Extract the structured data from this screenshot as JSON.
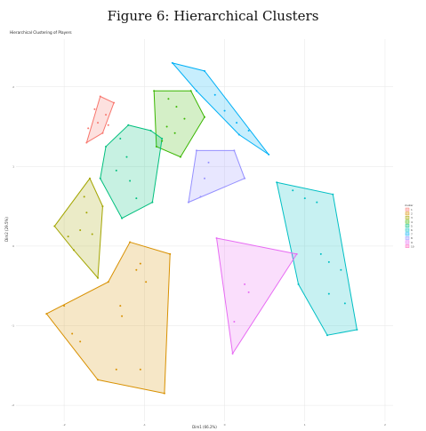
{
  "figure_title": "Figure 6: Hierarchical Clusters",
  "colors": {
    "1": "#F8766D",
    "2": "#D89000",
    "3": "#A3A500",
    "4": "#39B600",
    "5": "#00BF7D",
    "6": "#00BFC4",
    "7": "#00B0F6",
    "8": "#9590FF",
    "9": "#E76BF3",
    "10": "#FF62BC"
  },
  "chart_data": {
    "type": "scatter",
    "title": "Hierarchical Clustering of Players",
    "xlabel": "Dim1 (66.2%)",
    "ylabel": "Dim2 (29.5%)",
    "xlim": [
      -2.6,
      2.1
    ],
    "ylim": [
      -2.2,
      2.6
    ],
    "grid": true,
    "legend_title": "cluster",
    "legend_position": "right",
    "clusters": [
      {
        "name": "1",
        "hull": [
          [
            -1.55,
            1.88
          ],
          [
            -1.38,
            1.8
          ],
          [
            -1.52,
            1.42
          ],
          [
            -1.72,
            1.3
          ]
        ],
        "points": [
          [
            -1.55,
            1.88
          ],
          [
            -1.62,
            1.72
          ],
          [
            -1.48,
            1.65
          ],
          [
            -1.58,
            1.55
          ],
          [
            -1.7,
            1.48
          ],
          [
            -1.45,
            1.52
          ],
          [
            -1.52,
            1.42
          ],
          [
            -1.72,
            1.3
          ],
          [
            -1.38,
            1.8
          ]
        ]
      },
      {
        "name": "2",
        "hull": [
          [
            -1.18,
            0.05
          ],
          [
            -0.68,
            -0.1
          ],
          [
            -0.75,
            -1.85
          ],
          [
            -1.58,
            -1.68
          ],
          [
            -2.22,
            -0.85
          ],
          [
            -1.45,
            -0.45
          ]
        ],
        "points": [
          [
            -1.18,
            0.05
          ],
          [
            -0.68,
            -0.1
          ],
          [
            -0.75,
            -1.85
          ],
          [
            -1.58,
            -1.68
          ],
          [
            -2.22,
            -0.85
          ],
          [
            -1.45,
            -0.45
          ],
          [
            -1.05,
            -0.22
          ],
          [
            -1.1,
            -0.3
          ],
          [
            -0.98,
            -0.45
          ],
          [
            -1.3,
            -0.75
          ],
          [
            -2.0,
            -0.75
          ],
          [
            -1.9,
            -1.1
          ],
          [
            -1.8,
            -1.2
          ],
          [
            -1.35,
            -1.55
          ],
          [
            -1.05,
            -1.55
          ],
          [
            -1.28,
            -0.88
          ]
        ]
      },
      {
        "name": "3",
        "hull": [
          [
            -1.68,
            0.85
          ],
          [
            -1.52,
            0.5
          ],
          [
            -1.58,
            -0.4
          ],
          [
            -1.88,
            -0.05
          ],
          [
            -2.12,
            0.25
          ]
        ],
        "points": [
          [
            -1.68,
            0.85
          ],
          [
            -1.52,
            0.5
          ],
          [
            -1.58,
            -0.4
          ],
          [
            -1.88,
            -0.05
          ],
          [
            -2.12,
            0.25
          ],
          [
            -1.75,
            0.62
          ],
          [
            -1.72,
            0.42
          ],
          [
            -1.8,
            0.2
          ],
          [
            -1.95,
            0.12
          ],
          [
            -1.65,
            0.15
          ]
        ]
      },
      {
        "name": "4",
        "hull": [
          [
            -0.88,
            1.95
          ],
          [
            -0.42,
            1.95
          ],
          [
            -0.25,
            1.62
          ],
          [
            -0.55,
            1.12
          ],
          [
            -0.85,
            1.25
          ]
        ],
        "points": [
          [
            -0.88,
            1.95
          ],
          [
            -0.42,
            1.95
          ],
          [
            -0.25,
            1.62
          ],
          [
            -0.55,
            1.12
          ],
          [
            -0.85,
            1.25
          ],
          [
            -0.7,
            1.85
          ],
          [
            -0.6,
            1.75
          ],
          [
            -0.5,
            1.6
          ],
          [
            -0.72,
            1.5
          ],
          [
            -0.62,
            1.42
          ],
          [
            -0.78,
            1.32
          ]
        ]
      },
      {
        "name": "5",
        "hull": [
          [
            -1.2,
            1.52
          ],
          [
            -0.92,
            1.45
          ],
          [
            -0.78,
            1.35
          ],
          [
            -0.9,
            0.55
          ],
          [
            -1.28,
            0.35
          ],
          [
            -1.55,
            0.85
          ],
          [
            -1.48,
            1.25
          ]
        ],
        "points": [
          [
            -1.2,
            1.52
          ],
          [
            -0.92,
            1.45
          ],
          [
            -0.78,
            1.35
          ],
          [
            -0.9,
            0.55
          ],
          [
            -1.28,
            0.35
          ],
          [
            -1.55,
            0.85
          ],
          [
            -1.48,
            1.25
          ],
          [
            -1.3,
            1.35
          ],
          [
            -1.22,
            1.12
          ],
          [
            -1.35,
            0.95
          ],
          [
            -1.18,
            0.82
          ],
          [
            -1.1,
            0.6
          ]
        ]
      },
      {
        "name": "6",
        "hull": [
          [
            0.65,
            0.8
          ],
          [
            1.35,
            0.65
          ],
          [
            1.65,
            -1.05
          ],
          [
            1.28,
            -1.12
          ],
          [
            0.92,
            -0.48
          ]
        ],
        "points": [
          [
            0.65,
            0.8
          ],
          [
            1.35,
            0.65
          ],
          [
            1.65,
            -1.05
          ],
          [
            1.28,
            -1.12
          ],
          [
            0.92,
            -0.48
          ],
          [
            0.85,
            0.7
          ],
          [
            1.0,
            0.6
          ],
          [
            1.15,
            0.55
          ],
          [
            1.2,
            -0.1
          ],
          [
            1.3,
            -0.2
          ],
          [
            1.45,
            -0.3
          ],
          [
            1.5,
            -0.72
          ],
          [
            1.3,
            -0.6
          ]
        ]
      },
      {
        "name": "7",
        "hull": [
          [
            -0.65,
            2.3
          ],
          [
            -0.25,
            2.2
          ],
          [
            0.55,
            1.15
          ],
          [
            0.18,
            1.4
          ],
          [
            -0.35,
            1.95
          ]
        ],
        "points": [
          [
            -0.65,
            2.3
          ],
          [
            -0.25,
            2.2
          ],
          [
            0.55,
            1.15
          ],
          [
            0.18,
            1.4
          ],
          [
            -0.35,
            1.95
          ],
          [
            -0.12,
            1.9
          ],
          [
            0.0,
            1.7
          ],
          [
            0.15,
            1.55
          ],
          [
            0.3,
            1.45
          ]
        ]
      },
      {
        "name": "8",
        "hull": [
          [
            -0.35,
            1.2
          ],
          [
            0.12,
            1.2
          ],
          [
            0.25,
            0.85
          ],
          [
            -0.45,
            0.55
          ]
        ],
        "points": [
          [
            -0.35,
            1.2
          ],
          [
            0.12,
            1.2
          ],
          [
            0.25,
            0.85
          ],
          [
            -0.45,
            0.55
          ],
          [
            -0.2,
            1.05
          ],
          [
            -0.25,
            0.85
          ],
          [
            -0.3,
            0.62
          ]
        ]
      },
      {
        "name": "9",
        "hull": [
          [
            -0.1,
            0.1
          ],
          [
            0.9,
            -0.1
          ],
          [
            0.1,
            -1.35
          ]
        ],
        "points": [
          [
            -0.1,
            0.1
          ],
          [
            0.9,
            -0.1
          ],
          [
            0.1,
            -1.35
          ],
          [
            0.25,
            -0.48
          ],
          [
            0.3,
            -0.58
          ],
          [
            0.12,
            -0.95
          ]
        ]
      }
    ]
  }
}
